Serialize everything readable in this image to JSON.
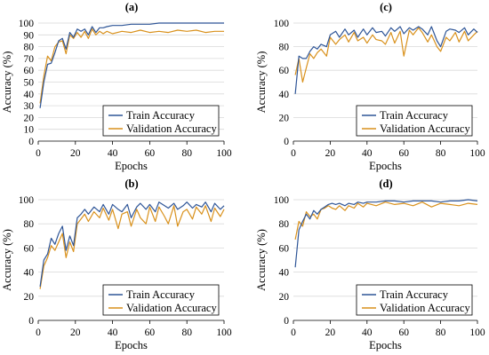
{
  "colors": {
    "train": "#2e5597",
    "validation": "#d9911c",
    "grid": "#d9d9d9",
    "axis": "#000000"
  },
  "chart_data": [
    {
      "id": "a",
      "type": "line",
      "title": "(a)",
      "xlabel": "Epochs",
      "ylabel": "Accuracy (%)",
      "xlim": [
        0,
        100
      ],
      "ylim": [
        0,
        100
      ],
      "xticks": [
        "0",
        "20",
        "40",
        "60",
        "80",
        "100"
      ],
      "yticks": [
        "0",
        "10",
        "20",
        "30",
        "40",
        "50",
        "60",
        "70",
        "80",
        "90",
        "100"
      ],
      "grid": true,
      "legend_position": "bottom-right",
      "series": [
        {
          "name": "Train Accuracy",
          "x": [
            1,
            3,
            5,
            7,
            9,
            11,
            13,
            15,
            17,
            19,
            21,
            23,
            25,
            27,
            29,
            31,
            33,
            35,
            37,
            40,
            45,
            50,
            55,
            60,
            65,
            70,
            80,
            90,
            100
          ],
          "y": [
            28,
            50,
            65,
            66,
            75,
            85,
            87,
            78,
            92,
            88,
            95,
            93,
            95,
            90,
            97,
            92,
            96,
            96,
            97,
            98,
            98,
            99,
            99,
            99,
            100,
            100,
            100,
            100,
            100
          ]
        },
        {
          "name": "Validation Accuracy",
          "x": [
            1,
            3,
            5,
            7,
            9,
            11,
            13,
            15,
            17,
            19,
            21,
            23,
            25,
            27,
            29,
            31,
            33,
            35,
            37,
            40,
            45,
            50,
            55,
            60,
            65,
            70,
            75,
            80,
            85,
            90,
            95,
            100
          ],
          "y": [
            32,
            55,
            72,
            68,
            80,
            84,
            85,
            74,
            90,
            87,
            92,
            88,
            93,
            87,
            95,
            90,
            93,
            91,
            93,
            91,
            93,
            92,
            94,
            92,
            93,
            92,
            94,
            93,
            94,
            92,
            93,
            93
          ]
        }
      ]
    },
    {
      "id": "c",
      "type": "line",
      "title": "(c)",
      "xlabel": "Epochs",
      "ylabel": "Accuracy (%)",
      "xlim": [
        0,
        100
      ],
      "ylim": [
        0,
        100
      ],
      "xticks": [
        "0",
        "20",
        "40",
        "60",
        "80",
        "100"
      ],
      "yticks": [
        "0",
        "20",
        "40",
        "60",
        "80",
        "100"
      ],
      "grid": true,
      "legend_position": "bottom-right",
      "series": [
        {
          "name": "Train Accuracy",
          "x": [
            1,
            3,
            5,
            7,
            9,
            11,
            13,
            15,
            18,
            20,
            23,
            25,
            28,
            30,
            33,
            35,
            38,
            40,
            43,
            45,
            48,
            50,
            53,
            55,
            58,
            60,
            63,
            65,
            68,
            70,
            73,
            75,
            78,
            80,
            83,
            85,
            88,
            90,
            93,
            95,
            98,
            100
          ],
          "y": [
            40,
            72,
            70,
            70,
            76,
            80,
            78,
            82,
            80,
            90,
            93,
            88,
            95,
            90,
            94,
            88,
            95,
            90,
            96,
            92,
            93,
            89,
            96,
            93,
            97,
            91,
            96,
            94,
            97,
            95,
            90,
            97,
            85,
            80,
            93,
            95,
            94,
            92,
            96,
            90,
            95,
            92
          ]
        },
        {
          "name": "Validation Accuracy",
          "x": [
            1,
            3,
            5,
            7,
            9,
            11,
            13,
            15,
            18,
            20,
            23,
            25,
            28,
            30,
            33,
            35,
            38,
            40,
            43,
            45,
            48,
            50,
            53,
            55,
            58,
            60,
            63,
            65,
            68,
            70,
            73,
            75,
            78,
            80,
            83,
            85,
            88,
            90,
            93,
            95,
            98,
            100
          ],
          "y": [
            56,
            70,
            50,
            62,
            74,
            70,
            75,
            78,
            72,
            88,
            82,
            86,
            90,
            84,
            92,
            85,
            88,
            83,
            90,
            86,
            85,
            82,
            92,
            83,
            93,
            72,
            94,
            90,
            96,
            92,
            84,
            90,
            80,
            76,
            88,
            85,
            92,
            84,
            93,
            85,
            90,
            93
          ]
        }
      ]
    },
    {
      "id": "b",
      "type": "line",
      "title": "(b)",
      "xlabel": "Epochs",
      "ylabel": "Accuracy (%)",
      "xlim": [
        0,
        100
      ],
      "ylim": [
        0,
        100
      ],
      "xticks": [
        "0",
        "20",
        "40",
        "60",
        "80",
        "100"
      ],
      "yticks": [
        "0",
        "20",
        "40",
        "60",
        "80",
        "100"
      ],
      "grid": true,
      "legend_position": "bottom-right",
      "series": [
        {
          "name": "Train Accuracy",
          "x": [
            1,
            3,
            5,
            7,
            9,
            11,
            13,
            15,
            17,
            19,
            21,
            23,
            25,
            27,
            30,
            33,
            35,
            38,
            40,
            43,
            45,
            48,
            50,
            53,
            55,
            58,
            60,
            63,
            65,
            68,
            70,
            73,
            75,
            78,
            80,
            83,
            85,
            88,
            90,
            93,
            95,
            98,
            100
          ],
          "y": [
            28,
            50,
            55,
            68,
            63,
            72,
            78,
            58,
            70,
            62,
            85,
            88,
            92,
            88,
            94,
            90,
            96,
            88,
            96,
            92,
            90,
            96,
            85,
            94,
            97,
            92,
            96,
            90,
            98,
            95,
            93,
            97,
            92,
            95,
            98,
            93,
            96,
            94,
            98,
            90,
            97,
            92,
            95
          ]
        },
        {
          "name": "Validation Accuracy",
          "x": [
            1,
            3,
            5,
            7,
            9,
            11,
            13,
            15,
            17,
            19,
            21,
            23,
            25,
            27,
            30,
            33,
            35,
            38,
            40,
            43,
            45,
            48,
            50,
            53,
            55,
            58,
            60,
            63,
            65,
            68,
            70,
            73,
            75,
            78,
            80,
            83,
            85,
            88,
            90,
            93,
            95,
            98,
            100
          ],
          "y": [
            26,
            45,
            52,
            62,
            58,
            65,
            72,
            52,
            65,
            57,
            80,
            84,
            88,
            82,
            90,
            85,
            93,
            83,
            92,
            76,
            88,
            90,
            78,
            92,
            85,
            80,
            94,
            82,
            94,
            86,
            80,
            95,
            78,
            90,
            92,
            84,
            94,
            88,
            95,
            82,
            93,
            86,
            92
          ]
        }
      ]
    },
    {
      "id": "d",
      "type": "line",
      "title": "(d)",
      "xlabel": "Epochs",
      "ylabel": "Accuracy (%)",
      "xlim": [
        0,
        100
      ],
      "ylim": [
        0,
        100
      ],
      "xticks": [
        "0",
        "20",
        "40",
        "60",
        "80",
        "100"
      ],
      "yticks": [
        "0",
        "20",
        "40",
        "60",
        "80",
        "100"
      ],
      "grid": true,
      "legend_position": "bottom-right",
      "series": [
        {
          "name": "Train Accuracy",
          "x": [
            1,
            3,
            5,
            7,
            9,
            11,
            13,
            15,
            17,
            19,
            21,
            23,
            25,
            28,
            30,
            33,
            35,
            38,
            40,
            45,
            50,
            55,
            60,
            65,
            70,
            75,
            80,
            85,
            90,
            95,
            100
          ],
          "y": [
            44,
            75,
            82,
            88,
            84,
            91,
            88,
            92,
            94,
            96,
            97,
            96,
            97,
            95,
            97,
            96,
            98,
            97,
            98,
            98,
            99,
            99,
            98,
            99,
            99,
            99,
            98,
            99,
            99,
            100,
            99
          ]
        },
        {
          "name": "Validation Accuracy",
          "x": [
            1,
            3,
            5,
            7,
            9,
            11,
            13,
            15,
            17,
            19,
            21,
            23,
            25,
            28,
            30,
            33,
            35,
            38,
            40,
            45,
            50,
            55,
            60,
            65,
            70,
            75,
            80,
            85,
            90,
            95,
            100
          ],
          "y": [
            67,
            82,
            78,
            90,
            86,
            88,
            84,
            92,
            93,
            95,
            93,
            92,
            95,
            91,
            95,
            93,
            97,
            94,
            97,
            95,
            98,
            96,
            97,
            95,
            98,
            94,
            97,
            96,
            95,
            97,
            96
          ]
        }
      ]
    }
  ]
}
